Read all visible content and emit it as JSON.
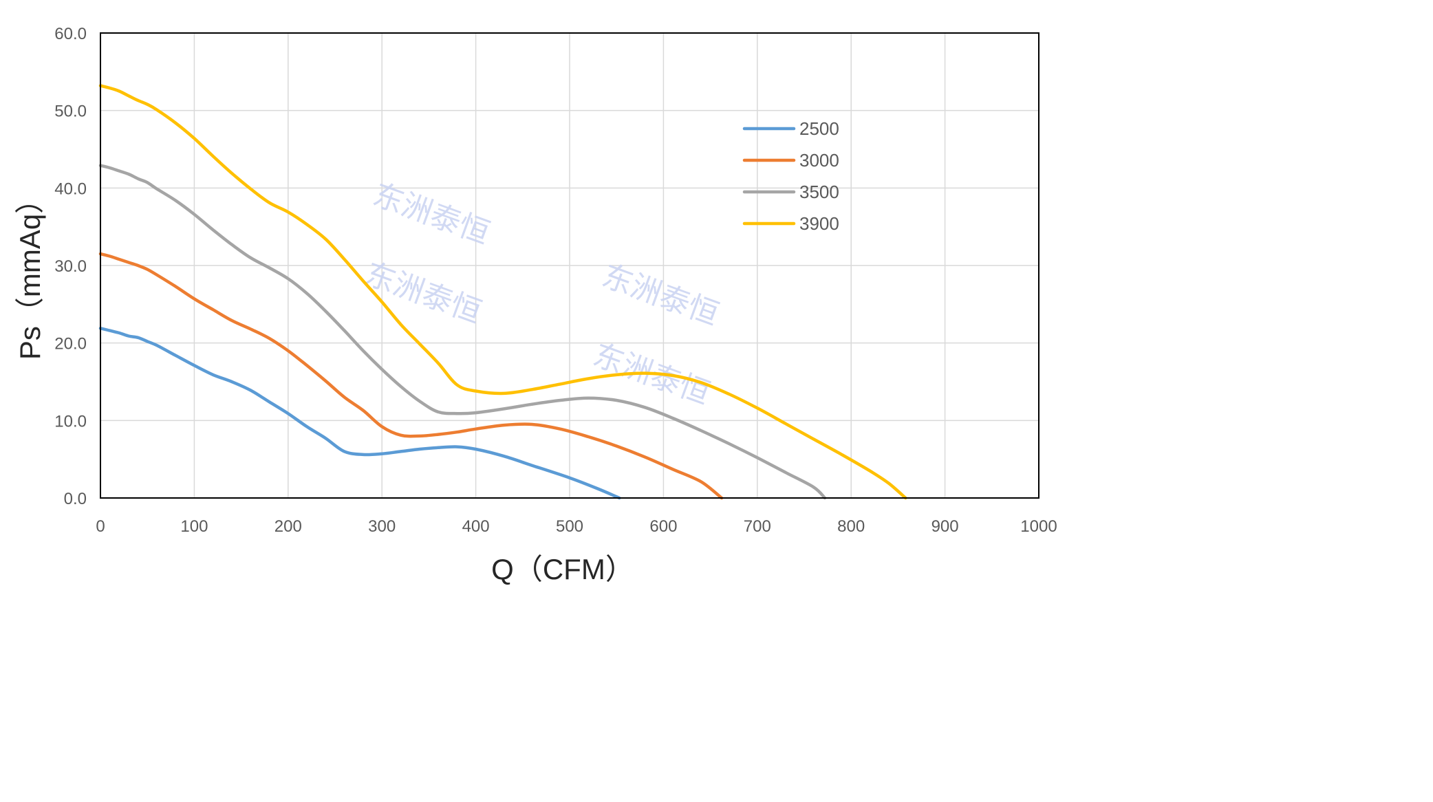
{
  "chart_data": {
    "type": "line",
    "xlabel": "Q（CFM）",
    "ylabel": "Ps（mmAq）",
    "xlim": [
      0,
      1000
    ],
    "ylim": [
      0,
      60
    ],
    "x_ticks": [
      0,
      100,
      200,
      300,
      400,
      500,
      600,
      700,
      800,
      900,
      1000
    ],
    "y_ticks": [
      "0.0",
      "10.0",
      "20.0",
      "30.0",
      "40.0",
      "50.0",
      "60.0"
    ],
    "grid": true,
    "legend_position": "upper-right inside",
    "watermark_text": "东洲泰恒",
    "series": [
      {
        "name": "2500",
        "color": "#5B9BD5",
        "points": [
          [
            0,
            21.9
          ],
          [
            10,
            21.6
          ],
          [
            20,
            21.3
          ],
          [
            30,
            20.9
          ],
          [
            40,
            20.7
          ],
          [
            50,
            20.2
          ],
          [
            60,
            19.7
          ],
          [
            80,
            18.4
          ],
          [
            100,
            17.1
          ],
          [
            120,
            15.9
          ],
          [
            140,
            15.0
          ],
          [
            160,
            13.9
          ],
          [
            180,
            12.4
          ],
          [
            200,
            10.9
          ],
          [
            220,
            9.2
          ],
          [
            240,
            7.7
          ],
          [
            260,
            6.0
          ],
          [
            280,
            5.6
          ],
          [
            300,
            5.7
          ],
          [
            320,
            6.0
          ],
          [
            340,
            6.3
          ],
          [
            360,
            6.5
          ],
          [
            380,
            6.6
          ],
          [
            400,
            6.3
          ],
          [
            430,
            5.4
          ],
          [
            460,
            4.2
          ],
          [
            500,
            2.6
          ],
          [
            530,
            1.2
          ],
          [
            553,
            0.0
          ]
        ]
      },
      {
        "name": "3000",
        "color": "#ED7D31",
        "points": [
          [
            0,
            31.5
          ],
          [
            10,
            31.2
          ],
          [
            20,
            30.8
          ],
          [
            30,
            30.4
          ],
          [
            40,
            30.0
          ],
          [
            50,
            29.5
          ],
          [
            60,
            28.8
          ],
          [
            80,
            27.3
          ],
          [
            100,
            25.7
          ],
          [
            120,
            24.3
          ],
          [
            140,
            22.9
          ],
          [
            160,
            21.8
          ],
          [
            180,
            20.6
          ],
          [
            200,
            19.0
          ],
          [
            220,
            17.1
          ],
          [
            240,
            15.1
          ],
          [
            260,
            13.0
          ],
          [
            280,
            11.3
          ],
          [
            300,
            9.2
          ],
          [
            320,
            8.1
          ],
          [
            340,
            8.0
          ],
          [
            360,
            8.2
          ],
          [
            380,
            8.5
          ],
          [
            400,
            8.9
          ],
          [
            430,
            9.4
          ],
          [
            460,
            9.5
          ],
          [
            490,
            8.9
          ],
          [
            520,
            7.9
          ],
          [
            550,
            6.7
          ],
          [
            580,
            5.3
          ],
          [
            610,
            3.7
          ],
          [
            640,
            2.1
          ],
          [
            662,
            0.0
          ]
        ]
      },
      {
        "name": "3500",
        "color": "#A5A5A5",
        "points": [
          [
            0,
            42.9
          ],
          [
            10,
            42.6
          ],
          [
            20,
            42.2
          ],
          [
            30,
            41.8
          ],
          [
            40,
            41.2
          ],
          [
            50,
            40.7
          ],
          [
            60,
            39.9
          ],
          [
            80,
            38.4
          ],
          [
            100,
            36.6
          ],
          [
            120,
            34.6
          ],
          [
            140,
            32.7
          ],
          [
            160,
            31.0
          ],
          [
            180,
            29.7
          ],
          [
            200,
            28.3
          ],
          [
            220,
            26.4
          ],
          [
            240,
            24.1
          ],
          [
            260,
            21.6
          ],
          [
            280,
            19.0
          ],
          [
            300,
            16.6
          ],
          [
            320,
            14.4
          ],
          [
            340,
            12.5
          ],
          [
            360,
            11.1
          ],
          [
            380,
            10.9
          ],
          [
            400,
            11.0
          ],
          [
            430,
            11.5
          ],
          [
            460,
            12.1
          ],
          [
            490,
            12.6
          ],
          [
            520,
            12.9
          ],
          [
            550,
            12.6
          ],
          [
            580,
            11.7
          ],
          [
            610,
            10.3
          ],
          [
            640,
            8.7
          ],
          [
            670,
            7.0
          ],
          [
            700,
            5.2
          ],
          [
            730,
            3.3
          ],
          [
            760,
            1.4
          ],
          [
            772,
            0.0
          ]
        ]
      },
      {
        "name": "3900",
        "color": "#FFC000",
        "points": [
          [
            0,
            53.2
          ],
          [
            10,
            52.9
          ],
          [
            20,
            52.5
          ],
          [
            30,
            51.9
          ],
          [
            40,
            51.3
          ],
          [
            50,
            50.8
          ],
          [
            60,
            50.1
          ],
          [
            80,
            48.4
          ],
          [
            100,
            46.4
          ],
          [
            120,
            44.1
          ],
          [
            140,
            41.9
          ],
          [
            160,
            39.9
          ],
          [
            180,
            38.1
          ],
          [
            200,
            36.9
          ],
          [
            220,
            35.3
          ],
          [
            240,
            33.4
          ],
          [
            260,
            30.8
          ],
          [
            280,
            28.0
          ],
          [
            300,
            25.3
          ],
          [
            320,
            22.4
          ],
          [
            340,
            19.9
          ],
          [
            360,
            17.4
          ],
          [
            380,
            14.6
          ],
          [
            400,
            13.8
          ],
          [
            430,
            13.5
          ],
          [
            460,
            14.0
          ],
          [
            490,
            14.7
          ],
          [
            520,
            15.4
          ],
          [
            550,
            15.9
          ],
          [
            580,
            16.1
          ],
          [
            610,
            15.8
          ],
          [
            640,
            14.9
          ],
          [
            670,
            13.4
          ],
          [
            700,
            11.6
          ],
          [
            730,
            9.6
          ],
          [
            760,
            7.6
          ],
          [
            790,
            5.6
          ],
          [
            820,
            3.5
          ],
          [
            840,
            1.9
          ],
          [
            858,
            0.0
          ]
        ]
      }
    ]
  }
}
